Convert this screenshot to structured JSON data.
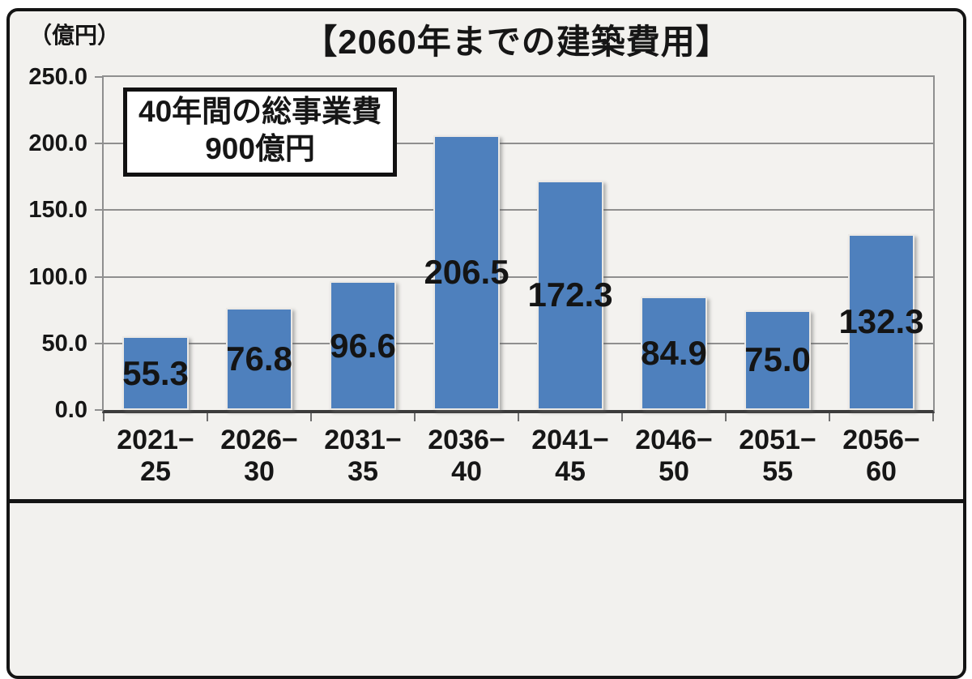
{
  "chart_data": {
    "type": "bar",
    "title": "【2060年までの建築費用】",
    "unit_label": "（億円）",
    "categories": [
      [
        "2021−",
        "25"
      ],
      [
        "2026−",
        "30"
      ],
      [
        "2031−",
        "35"
      ],
      [
        "2036−",
        "40"
      ],
      [
        "2041−",
        "45"
      ],
      [
        "2046−",
        "50"
      ],
      [
        "2051−",
        "55"
      ],
      [
        "2056−",
        "60"
      ]
    ],
    "values": [
      55.3,
      76.8,
      96.6,
      206.5,
      172.3,
      84.9,
      75.0,
      132.3
    ],
    "value_labels": [
      "55.3",
      "76.8",
      "96.6",
      "206.5",
      "172.3",
      "84.9",
      "75.0",
      "132.3"
    ],
    "ylim": [
      0,
      250
    ],
    "ytick_labels": [
      "250.0",
      "200.0",
      "150.0",
      "100.0",
      "50.0",
      "0.0"
    ],
    "grid": true,
    "legend_position": "none",
    "bar_color": "#4e80bd",
    "annotation": {
      "line1": "40年間の総事業費",
      "line2": "900億円"
    }
  }
}
